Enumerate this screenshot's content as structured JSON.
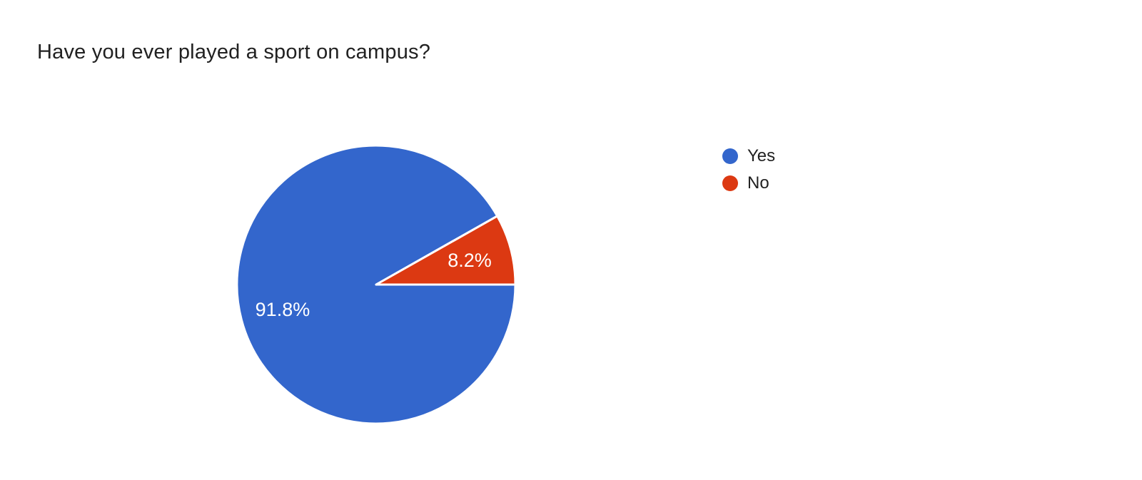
{
  "page": {
    "background_color": "#ffffff",
    "title_color": "#212121"
  },
  "chart_data": {
    "type": "pie",
    "title": "Have you ever played a sport on campus?",
    "categories": [
      "Yes",
      "No"
    ],
    "values": [
      91.8,
      8.2
    ],
    "slice_labels": [
      "91.8%",
      "8.2%"
    ],
    "colors": [
      "#3366CC",
      "#DC3912"
    ],
    "slice_label_color": "#ffffff",
    "slice_divider_color": "#ffffff",
    "start_angle_deg": 0,
    "direction": "clockwise",
    "total": 100,
    "legend_position": "right",
    "legend": {
      "entries": [
        {
          "label": "Yes",
          "color": "#3366CC"
        },
        {
          "label": "No",
          "color": "#DC3912"
        }
      ]
    }
  }
}
